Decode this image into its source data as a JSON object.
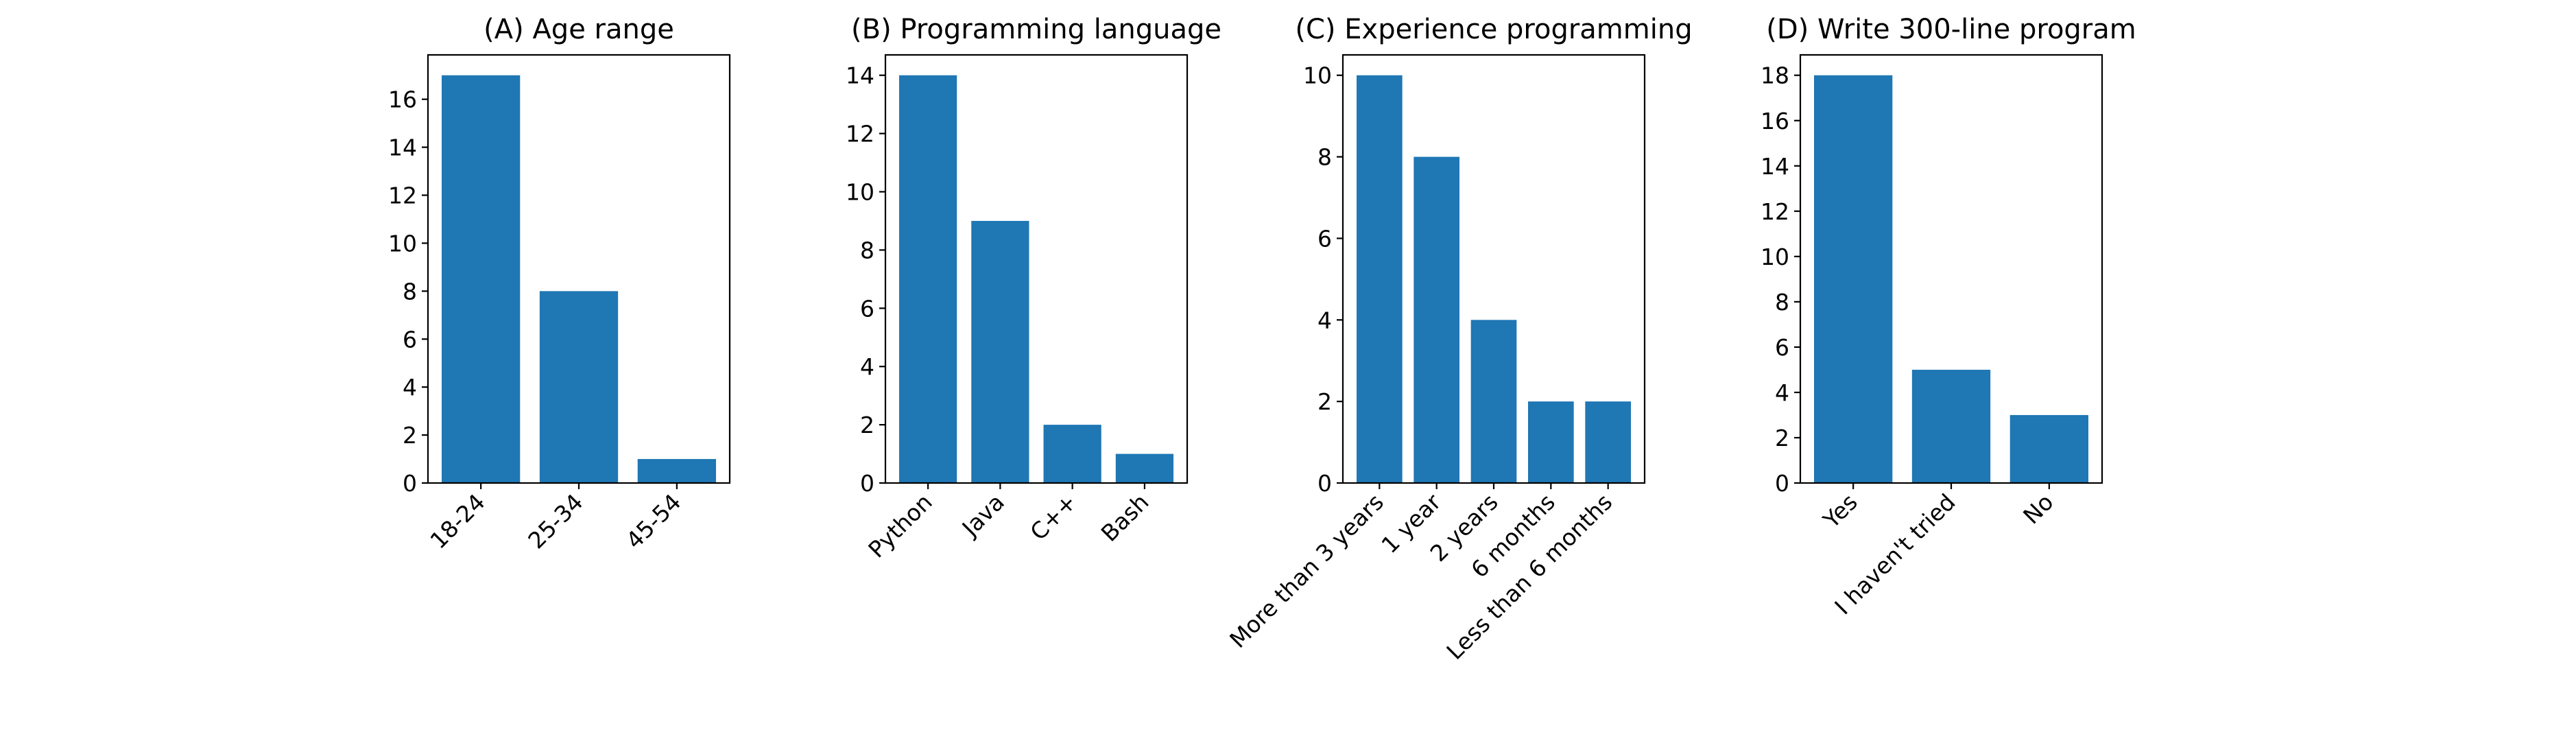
{
  "figure": {
    "background": "#ffffff",
    "bar_color": "#1f77b4"
  },
  "chart_data": [
    {
      "type": "bar",
      "title": "(A) Age range",
      "categories": [
        "18-24",
        "25-34",
        "45-54"
      ],
      "values": [
        17,
        8,
        1
      ],
      "yticks": [
        0,
        2,
        4,
        6,
        8,
        10,
        12,
        14,
        16
      ],
      "ylim": [
        0,
        17.85
      ],
      "xlabel": "",
      "ylabel": "",
      "grid": false
    },
    {
      "type": "bar",
      "title": "(B) Programming language",
      "categories": [
        "Python",
        "Java",
        "C++",
        "Bash"
      ],
      "values": [
        14,
        9,
        2,
        1
      ],
      "yticks": [
        0,
        2,
        4,
        6,
        8,
        10,
        12,
        14
      ],
      "ylim": [
        0,
        14.7
      ],
      "xlabel": "",
      "ylabel": "",
      "grid": false
    },
    {
      "type": "bar",
      "title": "(C) Experience programming",
      "categories": [
        "More than 3 years",
        "1 year",
        "2 years",
        "6 months",
        "Less than 6 months"
      ],
      "values": [
        10,
        8,
        4,
        2,
        2
      ],
      "yticks": [
        0,
        2,
        4,
        6,
        8,
        10
      ],
      "ylim": [
        0,
        10.5
      ],
      "xlabel": "",
      "ylabel": "",
      "grid": false
    },
    {
      "type": "bar",
      "title": "(D) Write 300-line program",
      "categories": [
        "Yes",
        "I haven't tried",
        "No"
      ],
      "values": [
        18,
        5,
        3
      ],
      "yticks": [
        0,
        2,
        4,
        6,
        8,
        10,
        12,
        14,
        16,
        18
      ],
      "ylim": [
        0,
        18.9
      ],
      "xlabel": "",
      "ylabel": "",
      "grid": false
    }
  ]
}
